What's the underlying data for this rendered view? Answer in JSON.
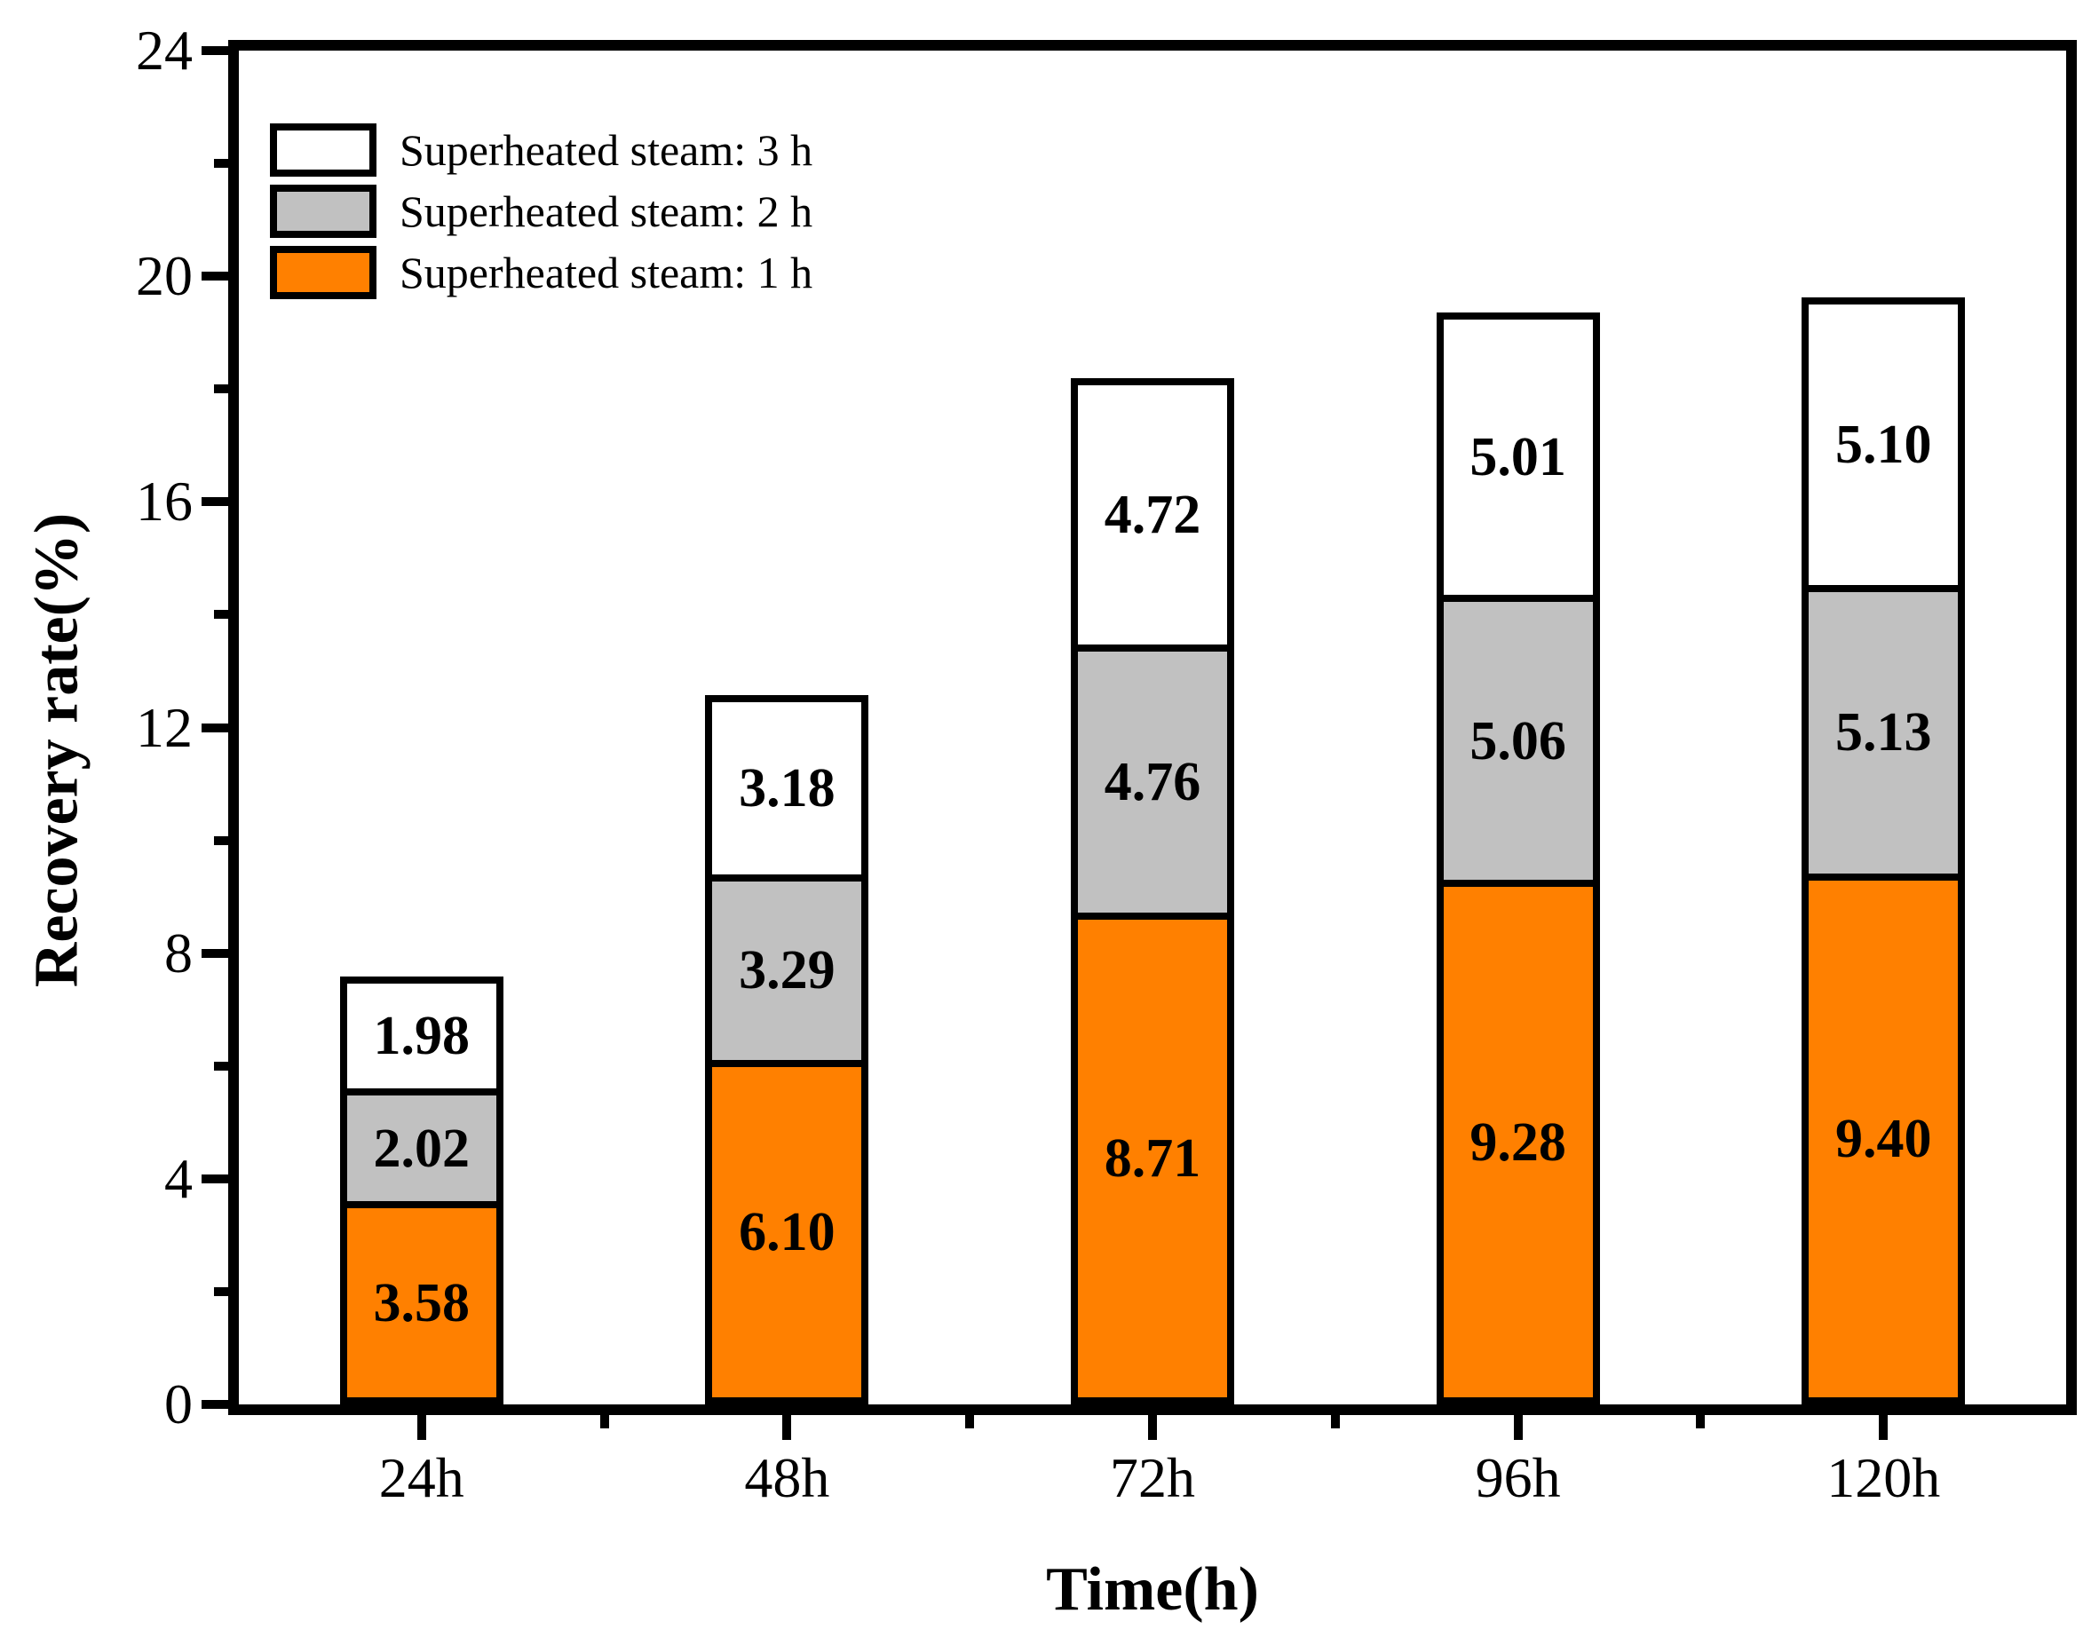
{
  "chart_data": {
    "type": "bar",
    "stacked": true,
    "xlabel": "Time(h)",
    "ylabel": "Recovery rate(%)",
    "categories": [
      "24h",
      "48h",
      "72h",
      "96h",
      "120h"
    ],
    "series": [
      {
        "name": "Superheated steam: 1 h",
        "color": "#FF8000",
        "values": [
          3.58,
          6.1,
          8.71,
          9.28,
          9.4
        ],
        "labels": [
          "3.58",
          "6.10",
          "8.71",
          "9.28",
          "9.40"
        ]
      },
      {
        "name": "Superheated steam: 2 h",
        "color": "#C1C1C1",
        "values": [
          2.02,
          3.29,
          4.76,
          5.06,
          5.13
        ],
        "labels": [
          "2.02",
          "3.29",
          "4.76",
          "5.06",
          "5.13"
        ]
      },
      {
        "name": "Superheated steam: 3 h",
        "color": "#FFFFFF",
        "values": [
          1.98,
          3.18,
          4.72,
          5.01,
          5.1
        ],
        "labels": [
          "1.98",
          "3.18",
          "4.72",
          "5.01",
          "5.10"
        ]
      }
    ],
    "legend_order_top_to_bottom": [
      "Superheated steam: 3 h",
      "Superheated steam: 2 h",
      "Superheated steam: 1 h"
    ],
    "legend_position": "top-left",
    "grid": false,
    "ylim": [
      0,
      24
    ],
    "yticks_major": [
      0,
      4,
      8,
      12,
      16,
      20,
      24
    ],
    "ytick_labels": [
      "0",
      "4",
      "8",
      "12",
      "16",
      "20",
      "24"
    ],
    "yticks_minor": [
      2,
      6,
      10,
      14,
      18,
      22
    ],
    "frame_color": "#000000",
    "bar_border_color": "#000000",
    "bar_totals": [
      7.58,
      12.57,
      18.19,
      19.35,
      19.63
    ]
  }
}
